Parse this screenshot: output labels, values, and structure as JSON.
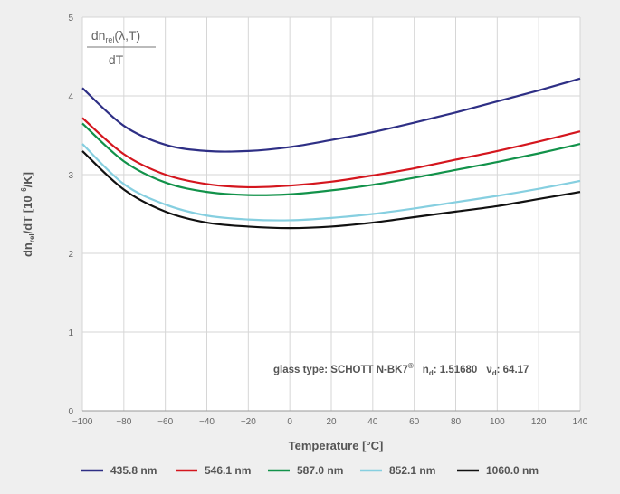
{
  "chart_data": {
    "type": "line",
    "xlabel": "Temperature [°C]",
    "ylabel": "dn",
    "ylabel_sub": "rel",
    "ylabel_rest": "/dT [10",
    "ylabel_sup": "−6",
    "ylabel_end": "/K]",
    "xlim": [
      -100,
      140
    ],
    "ylim": [
      0,
      5
    ],
    "x_ticks": [
      -100,
      -80,
      -60,
      -40,
      -20,
      0,
      20,
      40,
      60,
      80,
      100,
      120,
      140
    ],
    "x_tick_labels": [
      "−100",
      "−80",
      "−60",
      "−40",
      "−20",
      "0",
      "20",
      "40",
      "60",
      "80",
      "100",
      "120",
      "140"
    ],
    "y_ticks": [
      0,
      1,
      2,
      3,
      4,
      5
    ],
    "y_tick_labels": [
      "0",
      "1",
      "2",
      "3",
      "4",
      "5"
    ],
    "grid": true,
    "legend_position": "bottom",
    "formula_box": {
      "numerator_dn": "dn",
      "numerator_sub": "rel",
      "numerator_args": "(λ,T)",
      "denominator": "dT"
    },
    "annotation": {
      "prefix": "glass type: SCHOTT N-BK7",
      "reg": "®",
      "nd_label": "n",
      "nd_sub": "d",
      "nd_value": ": 1.51680",
      "vd_label": "ν",
      "vd_sub": "d",
      "vd_value": ": 64.17"
    },
    "x": [
      -100,
      -80,
      -60,
      -40,
      -20,
      0,
      20,
      40,
      60,
      80,
      100,
      120,
      140
    ],
    "series": [
      {
        "name": "435.8 nm",
        "color": "#2e2f85",
        "values": [
          4.1,
          3.62,
          3.38,
          3.3,
          3.3,
          3.35,
          3.44,
          3.54,
          3.66,
          3.79,
          3.93,
          4.07,
          4.22
        ]
      },
      {
        "name": "546.1 nm",
        "color": "#d4161e",
        "values": [
          3.72,
          3.26,
          3.0,
          2.88,
          2.84,
          2.86,
          2.91,
          2.99,
          3.08,
          3.19,
          3.3,
          3.42,
          3.55
        ]
      },
      {
        "name": "587.0 nm",
        "color": "#12924a",
        "values": [
          3.65,
          3.17,
          2.9,
          2.78,
          2.74,
          2.75,
          2.8,
          2.87,
          2.96,
          3.06,
          3.16,
          3.27,
          3.39
        ]
      },
      {
        "name": "852.1 nm",
        "color": "#86cfe0",
        "values": [
          3.39,
          2.88,
          2.62,
          2.48,
          2.43,
          2.42,
          2.45,
          2.5,
          2.57,
          2.65,
          2.73,
          2.82,
          2.92
        ]
      },
      {
        "name": "1060.0 nm",
        "color": "#111111",
        "values": [
          3.3,
          2.81,
          2.53,
          2.39,
          2.34,
          2.32,
          2.34,
          2.39,
          2.46,
          2.53,
          2.6,
          2.69,
          2.78
        ]
      }
    ]
  }
}
